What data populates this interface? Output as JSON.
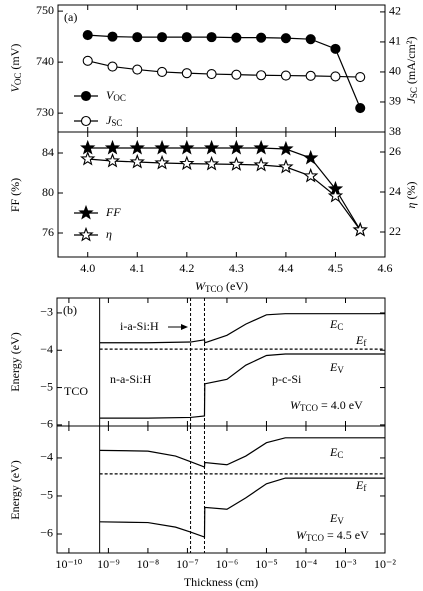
{
  "chart_data": [
    {
      "type": "line",
      "panel_label": "(a)",
      "x": [
        4.0,
        4.05,
        4.1,
        4.15,
        4.2,
        4.25,
        4.3,
        4.35,
        4.4,
        4.45,
        4.5,
        4.55
      ],
      "xlim": [
        3.94,
        4.6
      ],
      "ylim": [
        726.3,
        751.2
      ],
      "yticks": [
        730,
        740,
        750
      ],
      "ylabel": {
        "text": "V",
        "sub": "OC",
        "tail": " (mV)"
      },
      "y2lim": [
        38,
        42.23
      ],
      "y2ticks": [
        38,
        39,
        40,
        41,
        42
      ],
      "y2label": {
        "text": "J",
        "sub": "SC",
        "tail": " (mA/cm²)"
      },
      "series": [
        {
          "label": {
            "text": "V",
            "sub": "OC"
          },
          "color": "#000000",
          "marker": "circle-filled",
          "values": [
            745.3,
            745.0,
            744.9,
            744.9,
            744.9,
            744.9,
            744.8,
            744.8,
            744.7,
            744.5,
            742.6,
            731.0
          ]
        },
        {
          "label": {
            "text": "J",
            "sub": "SC"
          },
          "color": "#000000",
          "marker": "circle-open",
          "axis": "y2",
          "values": [
            40.37,
            40.18,
            40.08,
            40.0,
            39.96,
            39.93,
            39.91,
            39.89,
            39.88,
            39.87,
            39.85,
            39.83
          ]
        }
      ]
    },
    {
      "type": "line",
      "x": [
        4.0,
        4.05,
        4.1,
        4.15,
        4.2,
        4.25,
        4.3,
        4.35,
        4.4,
        4.45,
        4.5,
        4.55
      ],
      "xlim": [
        3.94,
        4.6
      ],
      "xticks": [
        {
          "value": 4.0,
          "label": "4.0"
        },
        4.1,
        4.2,
        4.3,
        4.4,
        4.5,
        4.6
      ],
      "xlabel": {
        "text": "W",
        "sub": "TCO",
        "tail": " (eV)"
      },
      "ylim": [
        73.6,
        86.1
      ],
      "yticks": [
        76,
        80,
        84
      ],
      "ylabel": "FF (%)",
      "y2lim": [
        20.75,
        27
      ],
      "y2ticks": [
        22,
        24,
        26
      ],
      "y2label": {
        "text": "η",
        "tail": " (%)"
      },
      "series": [
        {
          "label": {
            "text": "FF"
          },
          "color": "#000000",
          "marker": "star-filled",
          "values": [
            84.5,
            84.5,
            84.5,
            84.5,
            84.5,
            84.5,
            84.5,
            84.5,
            84.4,
            83.5,
            80.4,
            76.3
          ]
        },
        {
          "label": {
            "text": "η"
          },
          "color": "#000000",
          "marker": "star-open",
          "axis": "y2",
          "values": [
            25.65,
            25.55,
            25.5,
            25.45,
            25.42,
            25.4,
            25.38,
            25.35,
            25.25,
            24.8,
            23.8,
            22.1
          ]
        }
      ]
    },
    {
      "type": "line",
      "panel_label": "(b)",
      "xlog": true,
      "xlim": [
        5e-11,
        0.01
      ],
      "ylim": [
        -6.03,
        -2.6
      ],
      "yticks": [
        {
          "value": -3,
          "label": "−3"
        },
        {
          "value": -4,
          "label": "−4"
        },
        {
          "value": -5,
          "label": "−5"
        },
        {
          "value": -6,
          "label": "−6"
        }
      ],
      "ylabel": "Energy (eV)",
      "vlines": [
        {
          "x": 6e-10,
          "dash": false
        },
        {
          "x": 1.2e-07,
          "dash": true
        },
        {
          "x": 2.7e-07,
          "dash": true
        }
      ],
      "annotations": [
        "i-a-Si:H",
        "n-a-Si:H",
        "p-c-Si",
        "TCO"
      ],
      "condition": {
        "text": "W",
        "sub": "TCO",
        "tail": " = 4.0 eV"
      },
      "series": [
        {
          "label": {
            "text": "E",
            "sub": "C"
          },
          "color": "#000000",
          "x": [
            6e-10,
            1e-08,
            1.2e-07,
            2.7e-07,
            2.75e-07,
            1e-06,
            3e-06,
            1e-05,
            3e-05,
            0.01
          ],
          "values": [
            -3.8,
            -3.8,
            -3.78,
            -3.72,
            -3.8,
            -3.6,
            -3.3,
            -3.05,
            -3.02,
            -3.02
          ]
        },
        {
          "label": {
            "text": "E",
            "sub": "f"
          },
          "color": "#000000",
          "dash": true,
          "x": [
            6e-10,
            0.01
          ],
          "values": [
            -3.97,
            -3.97
          ]
        },
        {
          "label": {
            "text": "E",
            "sub": "V"
          },
          "color": "#000000",
          "x": [
            6e-10,
            1e-08,
            1.2e-07,
            2.7e-07,
            2.75e-07,
            1e-06,
            3e-06,
            1e-05,
            3e-05,
            0.01
          ],
          "values": [
            -5.82,
            -5.82,
            -5.8,
            -5.76,
            -4.9,
            -4.78,
            -4.4,
            -4.14,
            -4.1,
            -4.1
          ]
        }
      ]
    },
    {
      "type": "line",
      "xlog": true,
      "xlim": [
        5e-11,
        0.01
      ],
      "xticks": [
        {
          "value": 1e-10,
          "label": "10⁻¹⁰"
        },
        {
          "value": 1e-09,
          "label": "10⁻⁹"
        },
        {
          "value": 1e-08,
          "label": "10⁻⁸"
        },
        {
          "value": 1e-07,
          "label": "10⁻⁷"
        },
        {
          "value": 1e-06,
          "label": "10⁻⁶"
        },
        {
          "value": 1e-05,
          "label": "10⁻⁵"
        },
        {
          "value": 0.0001,
          "label": "10⁻⁴"
        },
        {
          "value": 0.001,
          "label": "10⁻³"
        },
        {
          "value": 0.01,
          "label": "10⁻²"
        }
      ],
      "xlabel": "Thickness (cm)",
      "ylim": [
        -6.5,
        -3.16
      ],
      "yticks": [
        {
          "value": -4,
          "label": "−4"
        },
        {
          "value": -5,
          "label": "−5"
        },
        {
          "value": -6,
          "label": "−6"
        }
      ],
      "ylabel": "Energy (eV)",
      "vlines": [
        {
          "x": 6e-10,
          "dash": false
        },
        {
          "x": 1.2e-07,
          "dash": true
        },
        {
          "x": 2.7e-07,
          "dash": true
        }
      ],
      "condition": {
        "text": "W",
        "sub": "TCO",
        "tail": " = 4.5 eV"
      },
      "series": [
        {
          "label": {
            "text": "E",
            "sub": "C"
          },
          "color": "#000000",
          "x": [
            6e-10,
            1e-08,
            5e-08,
            1.2e-07,
            2.7e-07,
            2.75e-07,
            1e-06,
            3e-06,
            1e-05,
            3e-05,
            0.01
          ],
          "values": [
            -3.8,
            -3.82,
            -3.95,
            -4.1,
            -4.24,
            -4.12,
            -4.18,
            -3.95,
            -3.6,
            -3.47,
            -3.47
          ]
        },
        {
          "label": {
            "text": "E",
            "sub": "f"
          },
          "color": "#000000",
          "dash": true,
          "x": [
            6e-10,
            0.01
          ],
          "values": [
            -4.42,
            -4.42
          ]
        },
        {
          "label": {
            "text": "E",
            "sub": "V"
          },
          "color": "#000000",
          "x": [
            6e-10,
            1e-08,
            5e-08,
            1.2e-07,
            2.7e-07,
            2.75e-07,
            1e-06,
            3e-06,
            1e-05,
            3e-05,
            0.01
          ],
          "values": [
            -5.68,
            -5.7,
            -5.82,
            -5.95,
            -6.08,
            -5.3,
            -5.35,
            -5.05,
            -4.68,
            -4.53,
            -4.53
          ]
        }
      ]
    }
  ]
}
